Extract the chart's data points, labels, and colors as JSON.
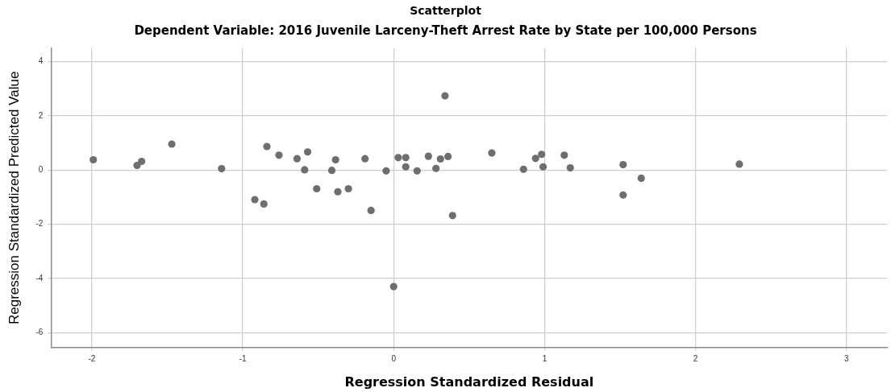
{
  "chart_data": {
    "type": "scatter",
    "title": "Scatterplot",
    "subtitle": "Dependent Variable: 2016 Juvenile Larceny-Theft Arrest Rate by State per 100,000 Persons",
    "xlabel": "Regression Standardized Residual",
    "ylabel": "Regression Standardized Predicted Value",
    "x": [
      -1.99,
      -1.7,
      -1.67,
      -1.47,
      -1.14,
      -0.92,
      -0.86,
      -0.84,
      -0.76,
      -0.64,
      -0.57,
      -0.59,
      -0.51,
      -0.41,
      -0.385,
      -0.37,
      -0.3,
      -0.19,
      -0.15,
      -0.05,
      0.0,
      0.03,
      0.08,
      0.08,
      0.155,
      0.23,
      0.28,
      0.31,
      0.36,
      0.34,
      0.39,
      0.65,
      0.86,
      0.94,
      0.98,
      0.99,
      1.13,
      1.17,
      1.52,
      1.52,
      1.64,
      2.29
    ],
    "values": [
      0.38,
      0.17,
      0.32,
      0.96,
      0.05,
      -1.09,
      -1.25,
      0.87,
      0.55,
      0.42,
      0.67,
      0.01,
      -0.69,
      -0.01,
      0.38,
      -0.8,
      -0.69,
      0.42,
      -1.49,
      -0.03,
      -4.3,
      0.46,
      0.46,
      0.12,
      -0.03,
      0.51,
      0.06,
      0.41,
      0.5,
      2.74,
      -1.68,
      0.63,
      0.03,
      0.43,
      0.58,
      0.12,
      0.55,
      0.08,
      0.2,
      -0.92,
      -0.3,
      0.22
    ],
    "color": "#6e6e6e",
    "marker": "circle",
    "grid": true,
    "xlim": [
      -2.27,
      3.27
    ],
    "ylim": [
      -6.55,
      4.5
    ],
    "xticks": [
      -2,
      -1,
      0,
      1,
      2,
      3
    ],
    "yticks": [
      -6,
      -4,
      -2,
      0,
      2,
      4
    ]
  }
}
